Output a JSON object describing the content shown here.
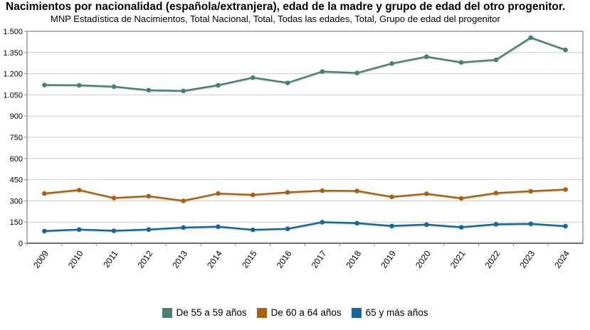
{
  "chart_data": {
    "type": "line",
    "title": "Nacimientos por nacionalidad (española/extranjera), edad de la madre y grupo de edad del otro progenitor.",
    "subtitle": "MNP Estadística de Nacimientos, Total Nacional, Total, Todas las edades, Total, Grupo de edad del progenitor",
    "xlabel": "",
    "ylabel": "",
    "categories": [
      "2009",
      "2010",
      "2011",
      "2012",
      "2013",
      "2014",
      "2015",
      "2016",
      "2017",
      "2018",
      "2019",
      "2020",
      "2021",
      "2022",
      "2023",
      "2024"
    ],
    "ylim": [
      0,
      1500
    ],
    "yticks": [
      0,
      150,
      300,
      450,
      600,
      750,
      900,
      1050,
      1200,
      1350,
      1500
    ],
    "ytick_labels": [
      "0",
      "150",
      "300",
      "450",
      "600",
      "750",
      "900",
      "1.050",
      "1.200",
      "1.350",
      "1.500"
    ],
    "grid": true,
    "legend_position": "bottom",
    "series": [
      {
        "name": "De 55 a 59 años",
        "color": "#4a7f74",
        "values": [
          1120,
          1118,
          1108,
          1083,
          1078,
          1118,
          1172,
          1135,
          1215,
          1205,
          1272,
          1320,
          1280,
          1298,
          1455,
          1368
        ]
      },
      {
        "name": "De 60 a 64 años",
        "color": "#a9610f",
        "values": [
          352,
          376,
          320,
          333,
          300,
          352,
          342,
          360,
          372,
          370,
          328,
          350,
          318,
          355,
          368,
          380
        ]
      },
      {
        "name": "65 y más años",
        "color": "#15679b",
        "values": [
          86,
          97,
          88,
          97,
          111,
          117,
          95,
          102,
          149,
          142,
          122,
          132,
          113,
          134,
          137,
          121
        ]
      }
    ]
  }
}
